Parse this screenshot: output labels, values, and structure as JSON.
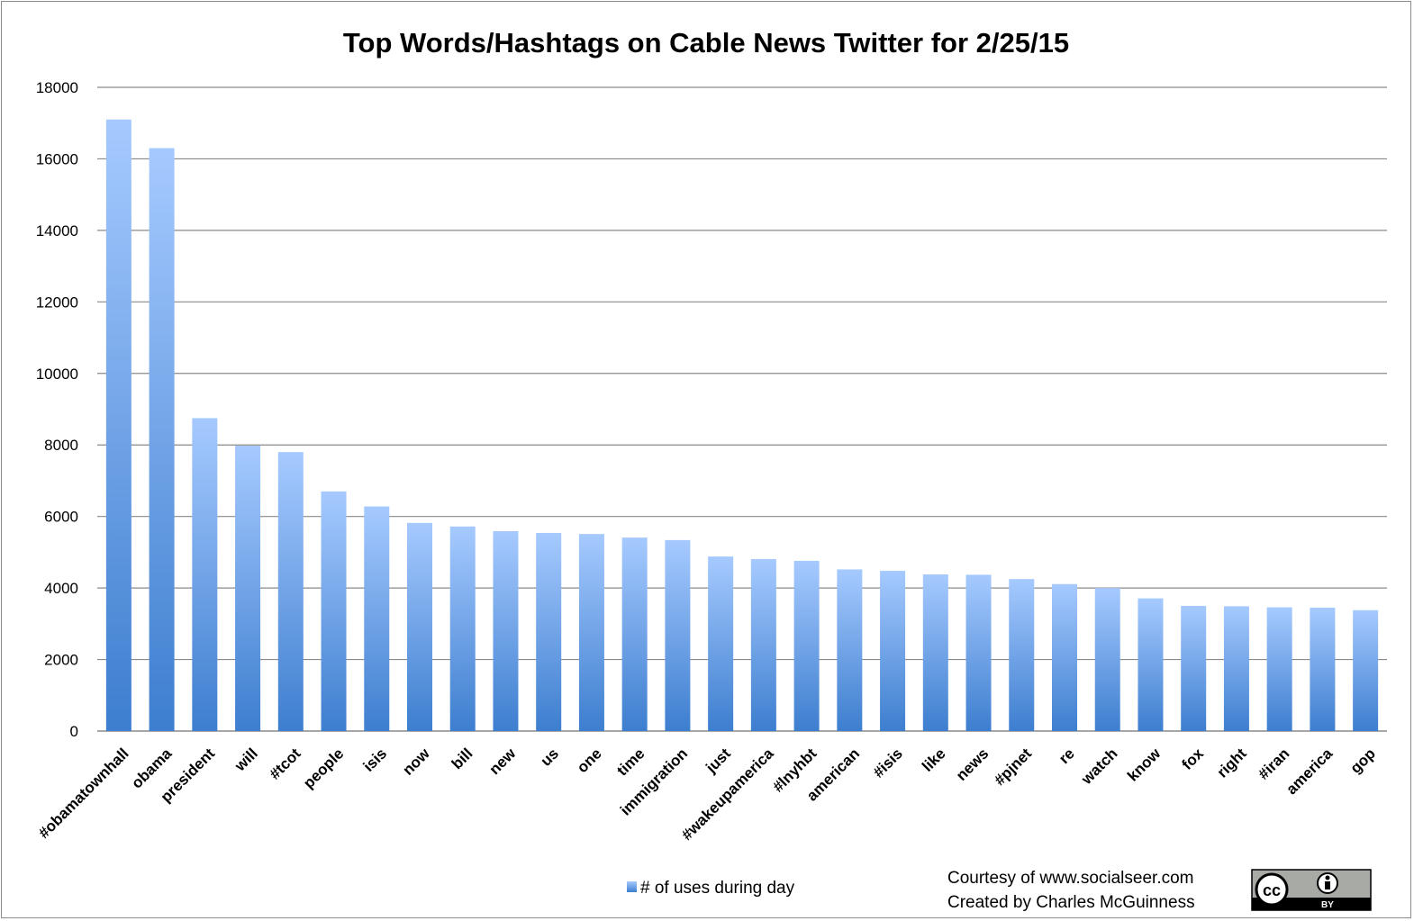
{
  "chart_data": {
    "type": "bar",
    "title": "Top Words/Hashtags on Cable News Twitter for 2/25/15",
    "xlabel": "",
    "ylabel": "",
    "ylim": [
      0,
      18000
    ],
    "yticks": [
      0,
      2000,
      4000,
      6000,
      8000,
      10000,
      12000,
      14000,
      16000,
      18000
    ],
    "grid": true,
    "legend_position": "bottom",
    "categories": [
      "#obamatownhall",
      "obama",
      "president",
      "will",
      "#tcot",
      "people",
      "isis",
      "now",
      "bill",
      "new",
      "us",
      "one",
      "time",
      "immigration",
      "just",
      "#wakeupamerica",
      "#lnyhbt",
      "american",
      "#isis",
      "like",
      "news",
      "#pjnet",
      "re",
      "watch",
      "know",
      "fox",
      "right",
      "#iran",
      "america",
      "gop"
    ],
    "series": [
      {
        "name": "# of uses during day",
        "color": "#4a86d0",
        "values": [
          17100,
          16300,
          8750,
          7980,
          7800,
          6700,
          6280,
          5820,
          5720,
          5590,
          5540,
          5510,
          5410,
          5340,
          4880,
          4810,
          4760,
          4520,
          4480,
          4380,
          4370,
          4250,
          4110,
          4000,
          3710,
          3500,
          3490,
          3460,
          3450,
          3380
        ]
      }
    ]
  },
  "credits": {
    "line1": "Courtesy of www.socialseer.com",
    "line2": "Created by Charles McGuinness"
  },
  "license_badge": {
    "icon": "creative-commons-by-icon",
    "text": "BY"
  },
  "colors": {
    "bar_top": "#a4c8ff",
    "bar_bottom": "#3e7fd0",
    "grid": "#8a8a8a"
  }
}
